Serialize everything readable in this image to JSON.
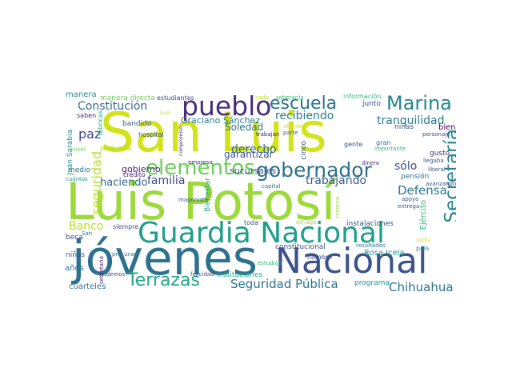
{
  "words": [
    {
      "id": "san-luis",
      "text": "San Luis",
      "color": "#d2e21b"
    },
    {
      "id": "luis-potosi",
      "text": "Luis Potosí",
      "color": "#9dd93b"
    },
    {
      "id": "jovenes",
      "text": "jóvenes",
      "color": "#2c728e"
    },
    {
      "id": "nacional",
      "text": "Nacional",
      "color": "#3b528b"
    },
    {
      "id": "guardia-nacional",
      "text": "Guardia Nacional",
      "color": "#1f9e89"
    },
    {
      "id": "pueblo",
      "text": "pueblo",
      "color": "#472d7b"
    },
    {
      "id": "escuela",
      "text": "escuela",
      "color": "#2c728e"
    },
    {
      "id": "marina",
      "text": "Marina",
      "color": "#25848e"
    },
    {
      "id": "elementos",
      "text": "elementos",
      "color": "#6ccd5a"
    },
    {
      "id": "gobernador",
      "text": "gobernador",
      "color": "#2d708e"
    },
    {
      "id": "secretaria-big",
      "text": "Secretaría",
      "color": "#26828e"
    },
    {
      "id": "terrazas",
      "text": "Terrazas",
      "color": "#22a884"
    },
    {
      "id": "seguridad-publica",
      "text": "Seguridad Pública",
      "color": "#2c728e"
    },
    {
      "id": "chihuahua",
      "text": "Chihuahua",
      "color": "#2d708e"
    },
    {
      "id": "constitucion",
      "text": "Constitución",
      "color": "#31688e"
    },
    {
      "id": "recibiendo",
      "text": "recibiendo",
      "color": "#287c8e"
    },
    {
      "id": "tranquilidad",
      "text": "tranquilidad",
      "color": "#287c8e"
    },
    {
      "id": "paz",
      "text": "paz",
      "color": "#414487"
    },
    {
      "id": "derecho",
      "text": "derecho",
      "color": "#31688e"
    },
    {
      "id": "familia",
      "text": "familia",
      "color": "#3e4a89"
    },
    {
      "id": "trabajando",
      "text": "trabajando",
      "color": "#38588c"
    },
    {
      "id": "defensa",
      "text": "Defensa",
      "color": "#2a788e"
    },
    {
      "id": "solo",
      "text": "sólo",
      "color": "#3b528b"
    },
    {
      "id": "banco",
      "text": "Banco",
      "color": "#b5de2b"
    },
    {
      "id": "seguridad-v",
      "text": "seguridad",
      "color": "#b5de2b"
    },
    {
      "id": "haciendo",
      "text": "haciendo",
      "color": "#31688e"
    },
    {
      "id": "gobierno",
      "text": "gobierno",
      "color": "#482173"
    },
    {
      "id": "soledad",
      "text": "Soledad",
      "color": "#2c728e"
    },
    {
      "id": "garantizar",
      "text": "garantizar",
      "color": "#3b528b"
    },
    {
      "id": "sucursales",
      "text": "sucursales",
      "color": "#3b528b"
    },
    {
      "id": "graciano",
      "text": "Graciano Sánchez",
      "color": "#287c8e"
    },
    {
      "id": "manera",
      "text": "manera",
      "color": "#21918c"
    },
    {
      "id": "manera-directa",
      "text": "manera directa",
      "color": "#6ccd5a"
    },
    {
      "id": "estudiantes",
      "text": "estudiantes",
      "color": "#3e4a89"
    },
    {
      "id": "cada",
      "text": "cada",
      "color": "#b5de2b"
    },
    {
      "id": "soberania",
      "text": "soberanía",
      "color": "#35b779"
    },
    {
      "id": "informacion",
      "text": "información",
      "color": "#35b779"
    },
    {
      "id": "junto",
      "text": "junto",
      "color": "#3e4a89"
    },
    {
      "id": "fabricas",
      "text": "fábricas",
      "color": "#22a884"
    },
    {
      "id": "juan",
      "text": "Juan",
      "color": "#b5de2b"
    },
    {
      "id": "saben",
      "text": "saben",
      "color": "#472d7b"
    },
    {
      "id": "bandido",
      "text": "bandido",
      "color": "#31688e"
    },
    {
      "id": "hospital",
      "text": "hospital",
      "color": "#3b528b"
    },
    {
      "id": "pequena",
      "text": "pequeña",
      "color": "#b5de2b"
    },
    {
      "id": "nivel",
      "text": "nivel",
      "color": "#6ccd5a"
    },
    {
      "id": "compromiso",
      "text": "compromiso",
      "color": "#472d7b"
    },
    {
      "id": "trabajan",
      "text": "trabajan",
      "color": "#482173"
    },
    {
      "id": "parte",
      "text": "parte",
      "color": "#31688e"
    },
    {
      "id": "atender",
      "text": "atender",
      "color": "#d2e21b"
    },
    {
      "id": "ninas",
      "text": "niñas",
      "color": "#3b528b"
    },
    {
      "id": "bien",
      "text": "bien",
      "color": "#440154"
    },
    {
      "id": "personaje",
      "text": "personaje",
      "color": "#3e4a89"
    },
    {
      "id": "gente",
      "text": "gente",
      "color": "#3b528b"
    },
    {
      "id": "gran",
      "text": "gran",
      "color": "#2c728e"
    },
    {
      "id": "importante",
      "text": "importante",
      "color": "#35b779"
    },
    {
      "id": "cinco",
      "text": "cinco",
      "color": "#3b528b"
    },
    {
      "id": "gusto",
      "text": "gusto",
      "color": "#472d7b"
    },
    {
      "id": "llegaba",
      "text": "llegaba",
      "color": "#3b528b"
    },
    {
      "id": "credito",
      "text": "crédito",
      "color": "#482173"
    },
    {
      "id": "medio",
      "text": "medio",
      "color": "#2c728e"
    },
    {
      "id": "cuantos",
      "text": "cuántos",
      "color": "#21918c"
    },
    {
      "id": "juan-sarabia",
      "text": "Juan Sarabia",
      "color": "#21918c"
    },
    {
      "id": "empresa",
      "text": "empresa",
      "color": "#472d7b"
    },
    {
      "id": "capital",
      "text": "capital",
      "color": "#2c728e"
    },
    {
      "id": "dinero",
      "text": "dinero",
      "color": "#472d7b"
    },
    {
      "id": "pension",
      "text": "pensión",
      "color": "#2c728e"
    },
    {
      "id": "liberal",
      "text": "liberal",
      "color": "#3b528b"
    },
    {
      "id": "avanzando",
      "text": "avanzando",
      "color": "#3b528b"
    },
    {
      "id": "apoyo",
      "text": "apoyo",
      "color": "#3b528b"
    },
    {
      "id": "entrega",
      "text": "entrega",
      "color": "#3b528b"
    },
    {
      "id": "ejercito",
      "text": "Ejército",
      "color": "#35b779"
    },
    {
      "id": "bienestar",
      "text": "Bienestar",
      "color": "#22a884"
    },
    {
      "id": "magonista",
      "text": "magonista",
      "color": "#3b528b"
    },
    {
      "id": "toda",
      "text": "toda",
      "color": "#3e4a89"
    },
    {
      "id": "arriaga",
      "text": "Arriaga",
      "color": "#9dd93b"
    },
    {
      "id": "reserva",
      "text": "reserva",
      "color": "#9dd93b"
    },
    {
      "id": "instalaciones",
      "text": "instalaciones",
      "color": "#3b528b"
    },
    {
      "id": "siempre",
      "text": "siempre",
      "color": "#3e4a89"
    },
    {
      "id": "san-small",
      "text": "San",
      "color": "#2c728e"
    },
    {
      "id": "beca",
      "text": "beca",
      "color": "#3e4a89"
    },
    {
      "id": "procurar",
      "text": "procurar",
      "color": "#2c728e"
    },
    {
      "id": "hombre",
      "text": "hombre",
      "color": "#3e4a89"
    },
    {
      "id": "podia",
      "text": "podía",
      "color": "#d2e21b"
    },
    {
      "id": "constitucional",
      "text": "constitucional",
      "color": "#3b528b"
    },
    {
      "id": "resultados",
      "text": "resultados",
      "color": "#2c728e"
    },
    {
      "id": "rosa-icela",
      "text": "Rosa Icela",
      "color": "#21918c"
    },
    {
      "id": "pais",
      "text": "país",
      "color": "#21918c"
    },
    {
      "id": "ninos",
      "text": "niños",
      "color": "#3b528b"
    },
    {
      "id": "anos",
      "text": "años",
      "color": "#2c728e"
    },
    {
      "id": "secretaria-small",
      "text": "secretaria",
      "color": "#482173"
    },
    {
      "id": "estudian",
      "text": "estudian",
      "color": "#35b779"
    },
    {
      "id": "podemos",
      "text": "podemos",
      "color": "#3e4a89"
    },
    {
      "id": "felicidad",
      "text": "felicidad",
      "color": "#3e4a89"
    },
    {
      "id": "instituciones",
      "text": "instituciones",
      "color": "#22a884"
    },
    {
      "id": "programa",
      "text": "programa",
      "color": "#21918c"
    },
    {
      "id": "cuarteles",
      "text": "cuarteles",
      "color": "#2c728e"
    }
  ]
}
